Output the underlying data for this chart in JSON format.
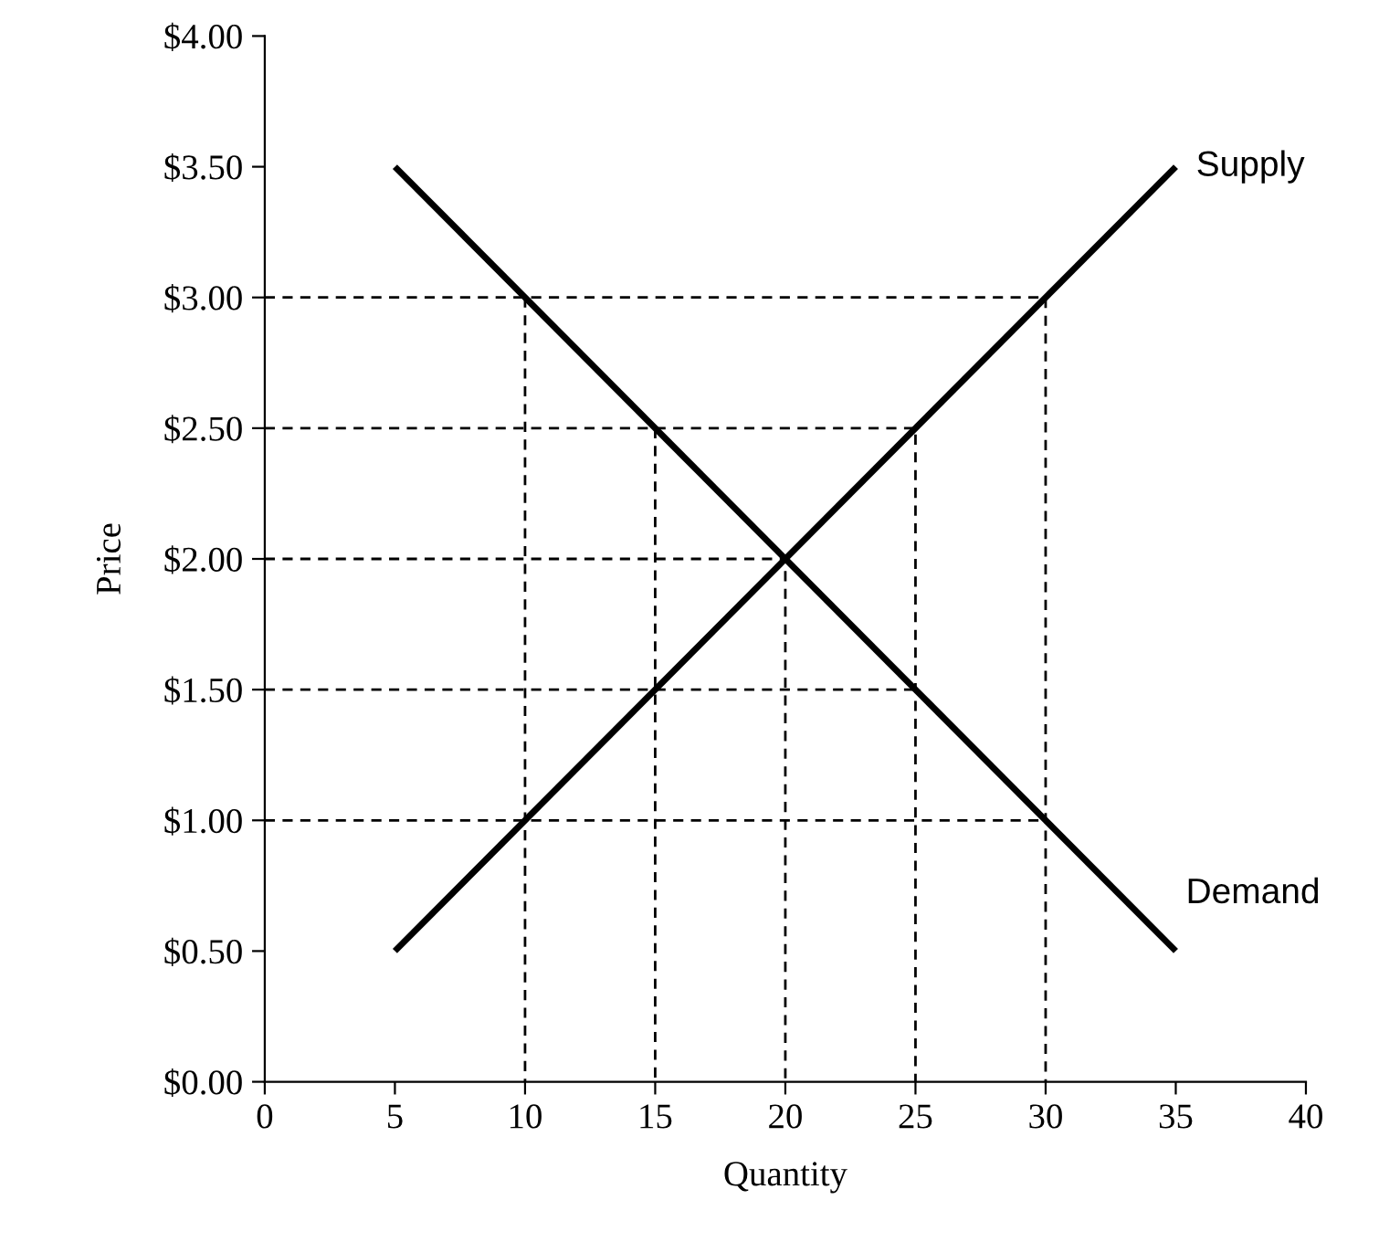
{
  "chart_data": {
    "type": "line",
    "xlabel": "Quantity",
    "ylabel": "Price",
    "xlim": [
      0,
      40
    ],
    "xticks": [
      0,
      5,
      10,
      15,
      20,
      25,
      30,
      35,
      40
    ],
    "ylim": [
      0,
      4
    ],
    "yticks": [
      {
        "value": 0,
        "label": "$0.00"
      },
      {
        "value": 0.5,
        "label": "$0.50"
      },
      {
        "value": 1,
        "label": "$1.00"
      },
      {
        "value": 1.5,
        "label": "$1.50"
      },
      {
        "value": 2,
        "label": "$2.00"
      },
      {
        "value": 2.5,
        "label": "$2.50"
      },
      {
        "value": 3,
        "label": "$3.00"
      },
      {
        "value": 3.5,
        "label": "$3.50"
      },
      {
        "value": 4,
        "label": "$4.00"
      }
    ],
    "grid": false,
    "legend": false,
    "marker": "none",
    "series": [
      {
        "name": "Supply",
        "color": "#000000",
        "x": [
          5,
          35
        ],
        "values": [
          0.5,
          3.5
        ],
        "line_style": "solid"
      },
      {
        "name": "Demand",
        "color": "#000000",
        "x": [
          5,
          35
        ],
        "values": [
          3.5,
          0.5
        ],
        "line_style": "solid"
      },
      {
        "color": "#000000",
        "x": [
          0,
          30,
          30
        ],
        "values": [
          3,
          3,
          0
        ],
        "line_style": "dashed"
      },
      {
        "color": "#000000",
        "x": [
          0,
          25,
          25
        ],
        "values": [
          2.5,
          2.5,
          0
        ],
        "line_style": "dashed"
      },
      {
        "color": "#000000",
        "x": [
          0,
          20,
          20
        ],
        "values": [
          2,
          2,
          0
        ],
        "line_style": "dashed"
      },
      {
        "color": "#000000",
        "x": [
          0,
          25
        ],
        "values": [
          1.5,
          1.5
        ],
        "line_style": "dashed"
      },
      {
        "color": "#000000",
        "x": [
          0,
          30
        ],
        "values": [
          1,
          1
        ],
        "line_style": "dashed"
      },
      {
        "color": "#000000",
        "x": [
          10,
          10
        ],
        "values": [
          3,
          0
        ],
        "line_style": "dashed"
      },
      {
        "color": "#000000",
        "x": [
          15,
          15
        ],
        "values": [
          2.5,
          0
        ],
        "line_style": "dashed"
      }
    ]
  }
}
